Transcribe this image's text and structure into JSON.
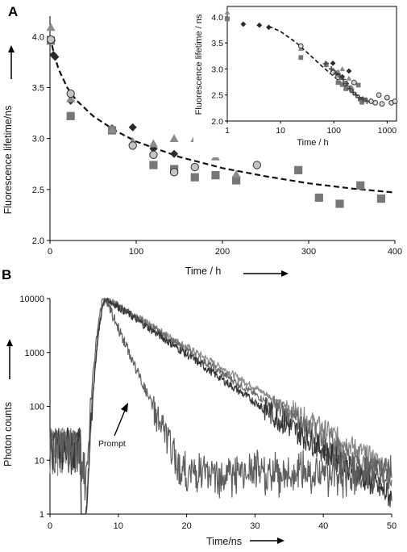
{
  "chart_data": [
    {
      "panel": "A",
      "type": "scatter",
      "xlabel": "Time / h",
      "ylabel": "Fluorescence lifetime/ns",
      "xlim": [
        0,
        400
      ],
      "ylim": [
        2.0,
        4.2
      ],
      "xticks": [
        "0",
        "100",
        "200",
        "300",
        "400"
      ],
      "yticks": [
        "2.0",
        "2.5",
        "3.0",
        "3.5",
        "4.0"
      ],
      "grid": false,
      "colors": {
        "diamond": "#2a2a2a",
        "square": "#777777",
        "triangle": "#8c8c8c",
        "circle": "#c4c4c4",
        "fit": "#111111"
      },
      "series": [
        {
          "marker": "diamond",
          "x": [
            1,
            2,
            4,
            6,
            24,
            72,
            96,
            120,
            144,
            192
          ],
          "y": [
            3.97,
            3.96,
            3.82,
            3.8,
            3.37,
            3.1,
            3.11,
            2.9,
            2.85,
            2.96
          ]
        },
        {
          "marker": "square",
          "x": [
            1,
            24,
            72,
            120,
            144,
            168,
            192,
            216,
            288,
            312,
            336,
            360,
            384
          ],
          "y": [
            3.96,
            3.22,
            3.08,
            2.74,
            2.7,
            2.62,
            2.64,
            2.59,
            2.69,
            2.42,
            2.36,
            2.54,
            2.41
          ]
        },
        {
          "marker": "triangle",
          "x": [
            1,
            24,
            72,
            96,
            120,
            144,
            168,
            192,
            216
          ],
          "y": [
            4.09,
            3.39,
            3.09,
            2.97,
            2.95,
            3.0,
            3.0,
            2.82,
            2.65
          ]
        },
        {
          "marker": "circle",
          "x": [
            1,
            24,
            96,
            120,
            144,
            168,
            240
          ],
          "y": [
            3.97,
            3.44,
            2.93,
            2.84,
            2.67,
            2.72,
            2.74
          ]
        }
      ],
      "fit": {
        "x": [
          0,
          5,
          10,
          20,
          30,
          50,
          75,
          100,
          150,
          200,
          250,
          300,
          350,
          400
        ],
        "y": [
          4.0,
          3.82,
          3.68,
          3.5,
          3.38,
          3.22,
          3.08,
          2.97,
          2.82,
          2.71,
          2.63,
          2.56,
          2.51,
          2.47
        ]
      },
      "inset": {
        "type": "scatter",
        "xscale": "log",
        "xlabel": "Time / h",
        "ylabel": "Fluorescence lifetime / ns",
        "xlim": [
          1,
          1500
        ],
        "ylim": [
          2.0,
          4.2
        ],
        "xticks": [
          "1",
          "10",
          "100",
          "1000"
        ],
        "yticks": [
          "2.0",
          "2.5",
          "3.0",
          "3.5",
          "4.0"
        ],
        "series": [
          {
            "marker": "diamond",
            "x": [
              1,
              2,
              4,
              6,
              72,
              96,
              120,
              144,
              192
            ],
            "y": [
              3.97,
              3.86,
              3.84,
              3.8,
              3.1,
              3.11,
              2.9,
              2.85,
              2.96
            ]
          },
          {
            "marker": "square",
            "x": [
              1,
              24,
              72,
              96,
              120,
              144,
              168,
              192,
              216,
              288,
              312,
              336,
              384
            ],
            "y": [
              3.96,
              3.22,
              3.08,
              2.95,
              2.74,
              2.7,
              2.62,
              2.64,
              2.59,
              2.69,
              2.42,
              2.36,
              2.41
            ]
          },
          {
            "marker": "triangle",
            "x": [
              1,
              24,
              72,
              96,
              120,
              144,
              192,
              216
            ],
            "y": [
              4.09,
              3.39,
              3.09,
              2.97,
              2.95,
              3.0,
              2.82,
              2.65
            ]
          },
          {
            "marker": "circle",
            "x": [
              24,
              96,
              120,
              168,
              240,
              500,
              600,
              700,
              800,
              1000,
              1200,
              1400
            ],
            "y": [
              3.44,
              2.93,
              2.84,
              2.72,
              2.74,
              2.38,
              2.35,
              2.5,
              2.33,
              2.45,
              2.35,
              2.38
            ]
          },
          {
            "marker": "plus",
            "x": [
              70,
              90,
              110,
              130,
              150,
              170,
              200,
              230,
              260,
              300,
              350,
              420
            ],
            "y": [
              3.1,
              3.0,
              2.92,
              2.85,
              2.8,
              2.72,
              2.62,
              2.55,
              2.5,
              2.45,
              2.42,
              2.38
            ]
          }
        ],
        "fit": {
          "x": [
            6,
            10,
            20,
            40,
            60,
            100,
            150,
            200,
            300,
            400
          ],
          "y": [
            3.82,
            3.72,
            3.5,
            3.22,
            3.05,
            2.86,
            2.7,
            2.6,
            2.46,
            2.38
          ]
        }
      }
    },
    {
      "panel": "B",
      "type": "line",
      "yscale": "log",
      "xlabel": "Time/ns",
      "ylabel": "Photon counts",
      "xlim": [
        0,
        50
      ],
      "ylim": [
        1,
        10000
      ],
      "xticks": [
        "0",
        "10",
        "20",
        "30",
        "40",
        "50"
      ],
      "yticks": [
        "1",
        "10",
        "100",
        "1000",
        "10000"
      ],
      "annotation": "Prompt",
      "series": [
        {
          "color": "#8a8a8a",
          "peak_x": 8.3,
          "decay": 5.7,
          "rise": 0.7,
          "noise": 0.18
        },
        {
          "color": "#6c6c6c",
          "peak_x": 8.3,
          "decay": 5.3,
          "rise": 0.7,
          "noise": 0.2
        },
        {
          "color": "#353535",
          "peak_x": 8.3,
          "decay": 4.9,
          "rise": 0.7,
          "noise": 0.22
        },
        {
          "color": "#5e5e5e",
          "peak_x": 8.1,
          "decay": 1.5,
          "rise": 0.75,
          "noise": 0.3,
          "floor": 3.5,
          "prompt": true
        }
      ]
    }
  ]
}
